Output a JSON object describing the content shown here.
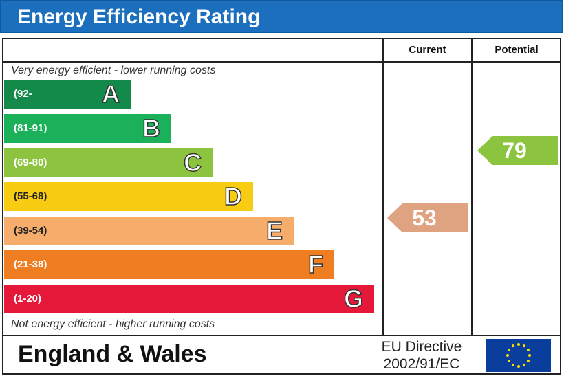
{
  "title": "Energy Efficiency Rating",
  "columns": {
    "current": "Current",
    "potential": "Potential"
  },
  "captions": {
    "top": "Very energy efficient - lower running costs",
    "bottom": "Not energy efficient - higher running costs"
  },
  "bands": [
    {
      "range": "(92-",
      "letter": "A",
      "color": "#138a4a"
    },
    {
      "range": "(81-91)",
      "letter": "B",
      "color": "#1bb05a"
    },
    {
      "range": "(69-80)",
      "letter": "C",
      "color": "#8cc43f"
    },
    {
      "range": "(55-68)",
      "letter": "D",
      "color": "#f7cc12"
    },
    {
      "range": "(39-54)",
      "letter": "E",
      "color": "#f6ad6c"
    },
    {
      "range": "(21-38)",
      "letter": "F",
      "color": "#ef7e23"
    },
    {
      "range": "(1-20)",
      "letter": "G",
      "color": "#e5183a"
    }
  ],
  "ratings": {
    "current": {
      "value": "53",
      "band": "E",
      "color": "#e0a381"
    },
    "potential": {
      "value": "79",
      "band": "C",
      "color": "#8cc43f"
    }
  },
  "footer": {
    "region": "England & Wales",
    "directive_line1": "EU Directive",
    "directive_line2": "2002/91/EC",
    "flag_icon": "eu-flag-icon",
    "flag_color": "#0a3e9c",
    "star_color": "#ffdd00"
  }
}
